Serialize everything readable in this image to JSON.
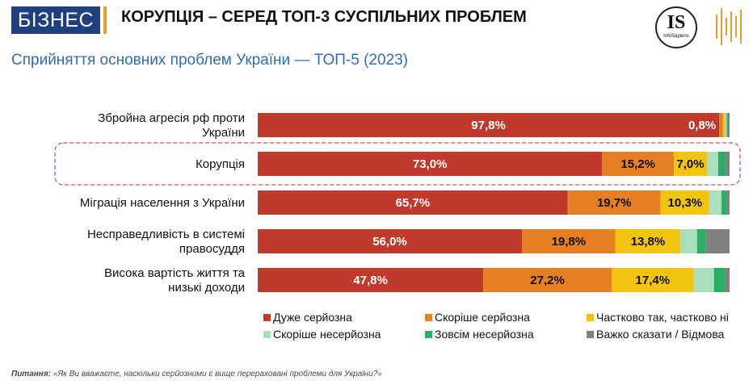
{
  "header": {
    "badge": "БІЗНЕС",
    "headline": "КОРУПЦІЯ – СЕРЕД ТОП-3 СУСПІЛЬНИХ ПРОБЛЕМ",
    "subtitle": "Сприйняття основних проблем України — ТОП-5 (2023)",
    "logo_text": "IS",
    "logo_subtext": "InfoSapiens"
  },
  "colors": {
    "badge_bg": "#1f3f7f",
    "accent": "#f0a020",
    "subtitle": "#2f6db3",
    "highlight_border": "#c0504d"
  },
  "chart_data": {
    "type": "bar",
    "orientation": "horizontal",
    "stacked": true,
    "xlim": [
      0,
      100
    ],
    "categories": [
      "Збройна агресія рф проти України",
      "Корупція",
      "Міграція населення з України",
      "Несправедливість в системі правосуддя",
      "Висока вартість життя та низькі доходи"
    ],
    "highlighted_category": "Корупція",
    "series": [
      {
        "name": "Дуже серйозна",
        "color": "#c0392b",
        "values": [
          97.8,
          73.0,
          65.7,
          56.0,
          47.8
        ],
        "labels": [
          "97,8%",
          "73,0%",
          "65,7%",
          "56,0%",
          "47,8%"
        ]
      },
      {
        "name": "Скоріше серйозна",
        "color": "#e67e22",
        "values": [
          0.8,
          15.2,
          19.7,
          19.8,
          27.2
        ],
        "labels": [
          "0,8%",
          "15,2%",
          "19,7%",
          "19,8%",
          "27,2%"
        ]
      },
      {
        "name": "Частково так, частково ні",
        "color": "#f1c40f",
        "values": [
          0.5,
          7.0,
          10.3,
          13.8,
          17.4
        ],
        "labels": [
          "",
          "7,0%",
          "10,3%",
          "13,8%",
          "17,4%"
        ]
      },
      {
        "name": "Скоріше несерйозна",
        "color": "#a9dfbf",
        "values": [
          0.3,
          2.4,
          2.6,
          3.5,
          4.3
        ],
        "labels": [
          "",
          "",
          "",
          "",
          ""
        ]
      },
      {
        "name": "Зовсім несерйозна",
        "color": "#27ae60",
        "values": [
          0.2,
          1.6,
          1.0,
          1.8,
          2.4
        ],
        "labels": [
          "",
          "",
          "",
          "",
          ""
        ]
      },
      {
        "name": "Важко сказати / Відмова",
        "color": "#808080",
        "values": [
          0.4,
          0.8,
          0.7,
          5.1,
          0.9
        ],
        "labels": [
          "",
          "",
          "",
          "",
          ""
        ]
      }
    ],
    "legend_position": "bottom"
  },
  "footnote": {
    "label": "Питання:",
    "text": " «Як Ви вважаєте, наскільки серйозними є вище перераховані проблеми для України?»"
  }
}
